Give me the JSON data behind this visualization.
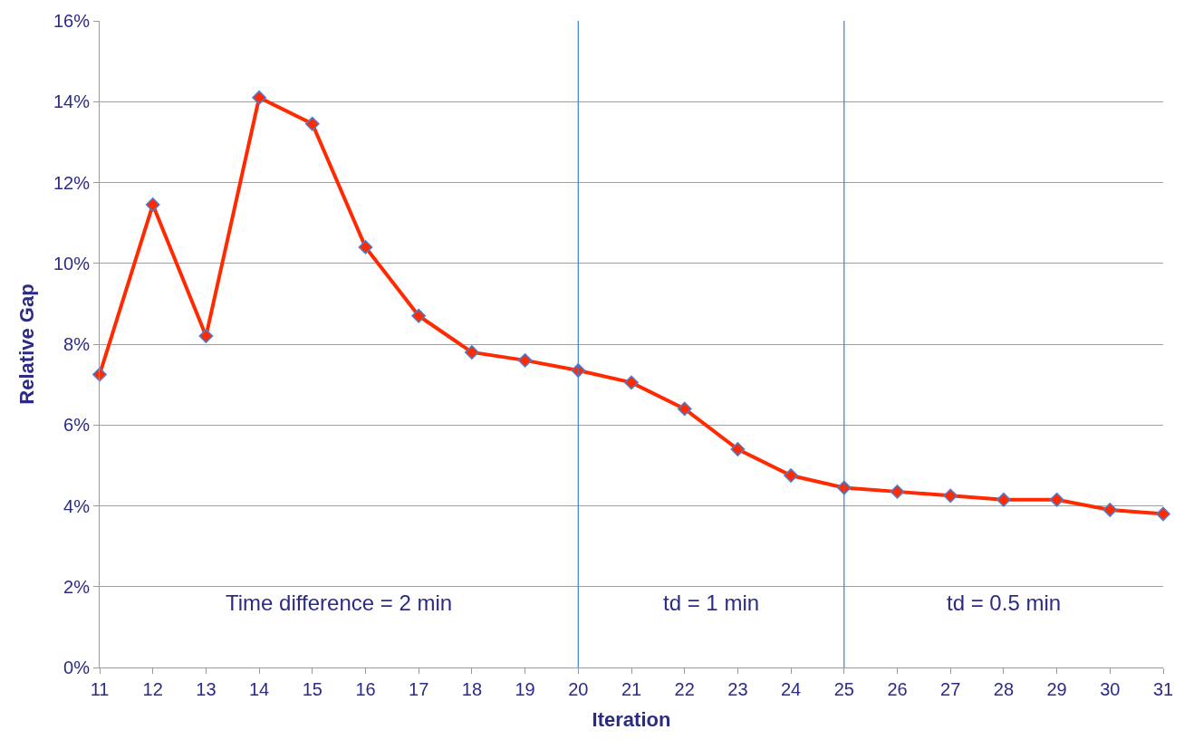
{
  "chart_data": {
    "type": "line",
    "xlabel": "Iteration",
    "ylabel": "Relative Gap",
    "x": [
      11,
      12,
      13,
      14,
      15,
      16,
      17,
      18,
      19,
      20,
      21,
      22,
      23,
      24,
      25,
      26,
      27,
      28,
      29,
      30,
      31
    ],
    "series": [
      {
        "color": "#ff2a00",
        "values": [
          7.25,
          11.45,
          8.2,
          14.1,
          13.45,
          10.4,
          8.7,
          7.8,
          7.6,
          7.35,
          7.05,
          6.4,
          5.4,
          4.75,
          4.45,
          4.35,
          4.25,
          4.15,
          4.15,
          3.9,
          3.8
        ]
      }
    ],
    "xlim": [
      11,
      31
    ],
    "xticks": [
      11,
      12,
      13,
      14,
      15,
      16,
      17,
      18,
      19,
      20,
      21,
      22,
      23,
      24,
      25,
      26,
      27,
      28,
      29,
      30,
      31
    ],
    "ylim": [
      0,
      16
    ],
    "yticks": [
      {
        "value": 0,
        "label": "0%"
      },
      {
        "value": 2,
        "label": "2%"
      },
      {
        "value": 4,
        "label": "4%"
      },
      {
        "value": 6,
        "label": "6%"
      },
      {
        "value": 8,
        "label": "8%"
      },
      {
        "value": 10,
        "label": "10%"
      },
      {
        "value": 12,
        "label": "12%"
      },
      {
        "value": 14,
        "label": "14%"
      },
      {
        "value": 16,
        "label": "16%"
      }
    ],
    "ref_lines": [
      {
        "axis": "x",
        "value": 20,
        "color": "#3c7dd9"
      },
      {
        "axis": "x",
        "value": 25,
        "color": "#3c7dd9"
      }
    ],
    "annotations": [
      "Time difference = 2 min",
      "td = 1 min",
      "td = 0.5 min"
    ],
    "grid": "y",
    "marker": "diamond",
    "line_style": "solid",
    "legend": false
  }
}
